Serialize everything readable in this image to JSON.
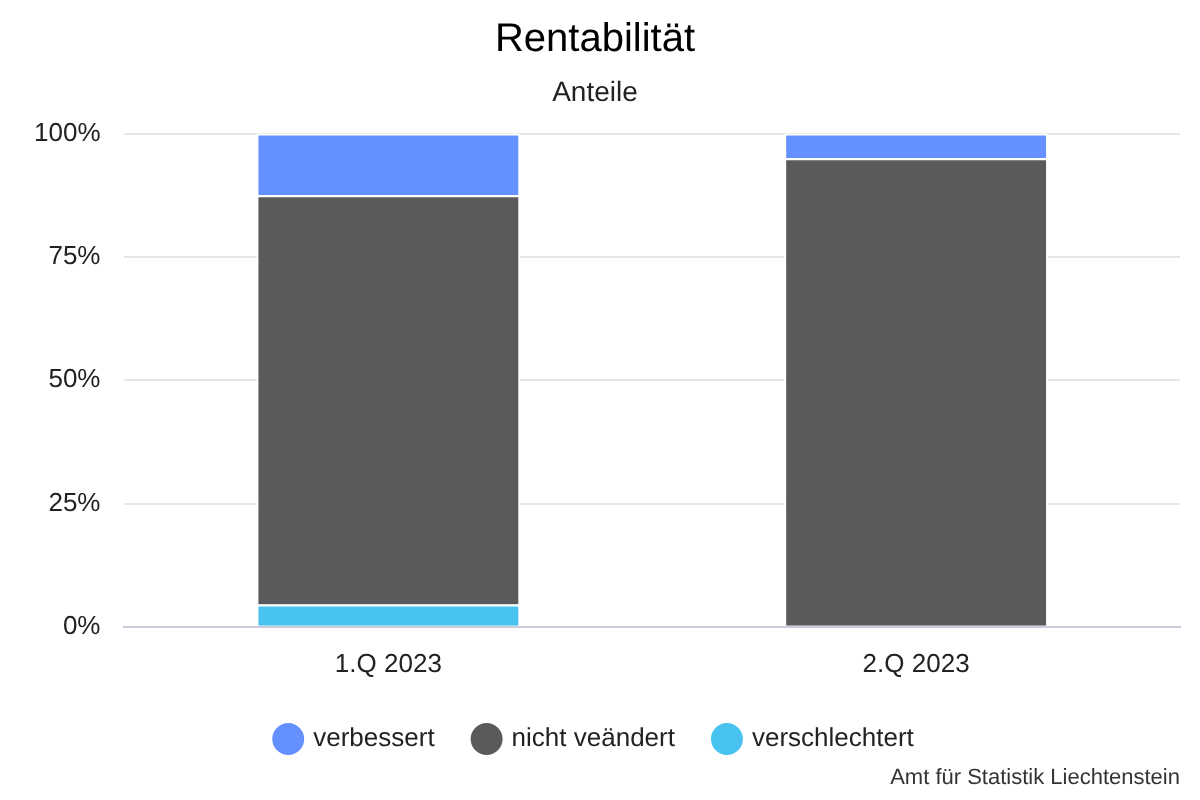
{
  "chart_data": {
    "type": "bar",
    "title": "Rentabilität",
    "subtitle": "Anteile",
    "categories": [
      "1.Q 2023",
      "2.Q 2023"
    ],
    "stacked": true,
    "series": [
      {
        "name": "verschlechtert",
        "color": "#48c3f0",
        "values": [
          4.5,
          0
        ]
      },
      {
        "name": "nicht veändert",
        "color": "#5a5a5c",
        "values": [
          83,
          95
        ]
      },
      {
        "name": "verbessert",
        "color": "#6590ff",
        "values": [
          12.5,
          5
        ]
      }
    ],
    "ylim": [
      0,
      100
    ],
    "yticks": [
      {
        "value": 0,
        "label": "0%"
      },
      {
        "value": 25,
        "label": "25%"
      },
      {
        "value": 50,
        "label": "50%"
      },
      {
        "value": 75,
        "label": "75%"
      },
      {
        "value": 100,
        "label": "100%"
      }
    ],
    "grid": "y",
    "legend": "bottom",
    "annotations": [
      "Amt für Statistik Liechtenstein"
    ]
  }
}
